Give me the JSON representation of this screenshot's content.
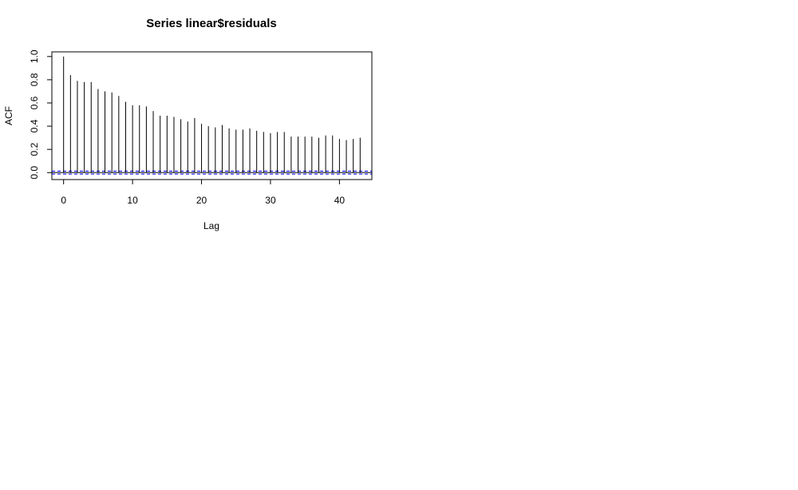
{
  "chart_data": {
    "type": "bar",
    "title": "Series  linear$residuals",
    "xlabel": "Lag",
    "ylabel": "ACF",
    "xlim": [
      -1.7,
      44.7
    ],
    "ylim": [
      -0.06,
      1.04
    ],
    "x_ticks": [
      0,
      10,
      20,
      30,
      40
    ],
    "y_ticks": [
      0.0,
      0.2,
      0.4,
      0.6,
      0.8,
      1.0
    ],
    "y_tick_labels": [
      "0.0",
      "0.2",
      "0.4",
      "0.6",
      "0.8",
      "1.0"
    ],
    "grid": false,
    "legend": "none",
    "confidence_bound": 0.013,
    "colors": {
      "bars": "#000000",
      "zero_line": "#000000",
      "ci_line": "#0000ff"
    },
    "x": [
      0,
      1,
      2,
      3,
      4,
      5,
      6,
      7,
      8,
      9,
      10,
      11,
      12,
      13,
      14,
      15,
      16,
      17,
      18,
      19,
      20,
      21,
      22,
      23,
      24,
      25,
      26,
      27,
      28,
      29,
      30,
      31,
      32,
      33,
      34,
      35,
      36,
      37,
      38,
      39,
      40,
      41,
      42,
      43
    ],
    "values": [
      1.0,
      0.84,
      0.79,
      0.78,
      0.78,
      0.72,
      0.7,
      0.69,
      0.66,
      0.61,
      0.58,
      0.58,
      0.57,
      0.53,
      0.49,
      0.49,
      0.48,
      0.46,
      0.44,
      0.47,
      0.42,
      0.4,
      0.39,
      0.41,
      0.38,
      0.37,
      0.37,
      0.38,
      0.36,
      0.35,
      0.34,
      0.35,
      0.35,
      0.31,
      0.31,
      0.31,
      0.31,
      0.3,
      0.32,
      0.32,
      0.29,
      0.28,
      0.29,
      0.3
    ]
  }
}
